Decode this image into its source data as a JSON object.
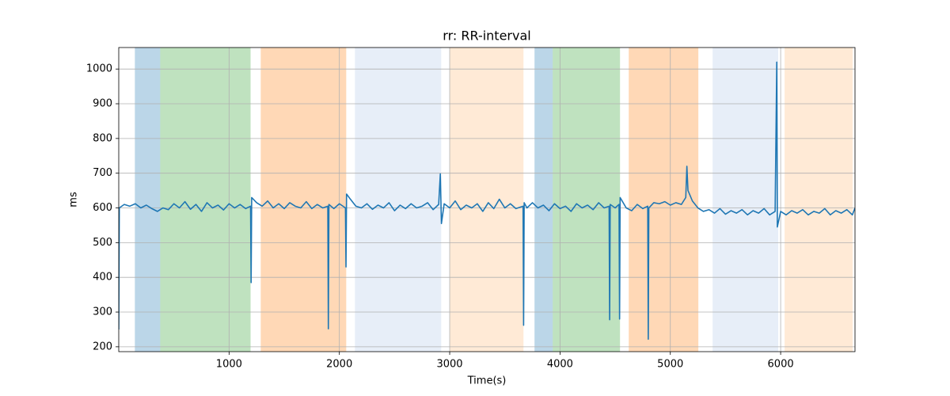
{
  "chart_data": {
    "type": "line",
    "title": "rr: RR-interval",
    "x_label": "Time(s)",
    "y_label": "ms",
    "xlim": [
      0,
      6674
    ],
    "ylim": [
      186,
      1062
    ],
    "xticks": [
      1000,
      2000,
      3000,
      4000,
      5000,
      6000
    ],
    "yticks": [
      200,
      300,
      400,
      500,
      600,
      700,
      800,
      900,
      1000
    ],
    "grid": true,
    "spans": [
      {
        "start": 146,
        "end": 376,
        "color": "#1f77b4"
      },
      {
        "start": 376,
        "end": 1195,
        "color": "#2ca02c"
      },
      {
        "start": 1287,
        "end": 2062,
        "color": "#ff7f0e"
      },
      {
        "start": 2141,
        "end": 2923,
        "color": "#aec7e8"
      },
      {
        "start": 3001,
        "end": 3669,
        "color": "#ffbb78"
      },
      {
        "start": 3769,
        "end": 3934,
        "color": "#1f77b4"
      },
      {
        "start": 3934,
        "end": 4544,
        "color": "#2ca02c"
      },
      {
        "start": 4623,
        "end": 5254,
        "color": "#ff7f0e"
      },
      {
        "start": 5383,
        "end": 5978,
        "color": "#aec7e8"
      },
      {
        "start": 6036,
        "end": 6653,
        "color": "#ffbb78"
      }
    ],
    "x": [
      0,
      5,
      50,
      100,
      150,
      200,
      250,
      300,
      350,
      400,
      450,
      500,
      550,
      600,
      650,
      700,
      750,
      800,
      850,
      900,
      950,
      1000,
      1050,
      1100,
      1150,
      1195,
      1200,
      1205,
      1250,
      1300,
      1350,
      1400,
      1450,
      1500,
      1550,
      1600,
      1650,
      1700,
      1750,
      1800,
      1850,
      1895,
      1900,
      1905,
      1950,
      2000,
      2055,
      2060,
      2065,
      2100,
      2150,
      2200,
      2250,
      2300,
      2350,
      2400,
      2450,
      2500,
      2550,
      2600,
      2650,
      2700,
      2750,
      2800,
      2850,
      2900,
      2915,
      2925,
      2950,
      3000,
      3050,
      3100,
      3150,
      3200,
      3250,
      3300,
      3350,
      3400,
      3450,
      3500,
      3550,
      3600,
      3665,
      3670,
      3675,
      3700,
      3750,
      3800,
      3850,
      3900,
      3950,
      4000,
      4050,
      4100,
      4150,
      4200,
      4250,
      4300,
      4350,
      4400,
      4445,
      4450,
      4455,
      4500,
      4535,
      4540,
      4545,
      4600,
      4650,
      4700,
      4750,
      4795,
      4800,
      4805,
      4850,
      4900,
      4950,
      5000,
      5050,
      5100,
      5140,
      5150,
      5160,
      5200,
      5250,
      5300,
      5350,
      5400,
      5450,
      5500,
      5550,
      5600,
      5650,
      5700,
      5750,
      5800,
      5850,
      5900,
      5950,
      5965,
      5970,
      6000,
      6050,
      6100,
      6150,
      6200,
      6250,
      6300,
      6350,
      6400,
      6450,
      6500,
      6550,
      6600,
      6650,
      6674
    ],
    "series": [
      {
        "color": "#1f77b4",
        "values": [
          250,
          600,
          610,
          605,
          612,
          600,
          608,
          598,
          590,
          600,
          595,
          612,
          600,
          618,
          596,
          610,
          590,
          615,
          600,
          608,
          594,
          612,
          600,
          610,
          598,
          605,
          385,
          630,
          615,
          605,
          620,
          600,
          612,
          598,
          615,
          605,
          600,
          618,
          598,
          610,
          600,
          605,
          252,
          610,
          598,
          612,
          600,
          430,
          640,
          625,
          605,
          600,
          612,
          596,
          608,
          600,
          615,
          592,
          608,
          598,
          612,
          600,
          605,
          615,
          595,
          610,
          698,
          555,
          612,
          600,
          620,
          595,
          608,
          600,
          612,
          590,
          615,
          598,
          625,
          600,
          612,
          598,
          605,
          262,
          615,
          600,
          615,
          600,
          608,
          592,
          612,
          598,
          605,
          590,
          612,
          600,
          608,
          595,
          615,
          600,
          605,
          278,
          610,
          600,
          610,
          280,
          630,
          600,
          592,
          610,
          598,
          605,
          222,
          600,
          615,
          612,
          618,
          608,
          615,
          610,
          630,
          720,
          650,
          620,
          600,
          590,
          595,
          585,
          598,
          582,
          592,
          585,
          595,
          580,
          592,
          585,
          598,
          580,
          590,
          1020,
          545,
          590,
          580,
          592,
          585,
          595,
          580,
          590,
          585,
          598,
          580,
          592,
          585,
          595,
          580,
          600
        ]
      }
    ]
  }
}
